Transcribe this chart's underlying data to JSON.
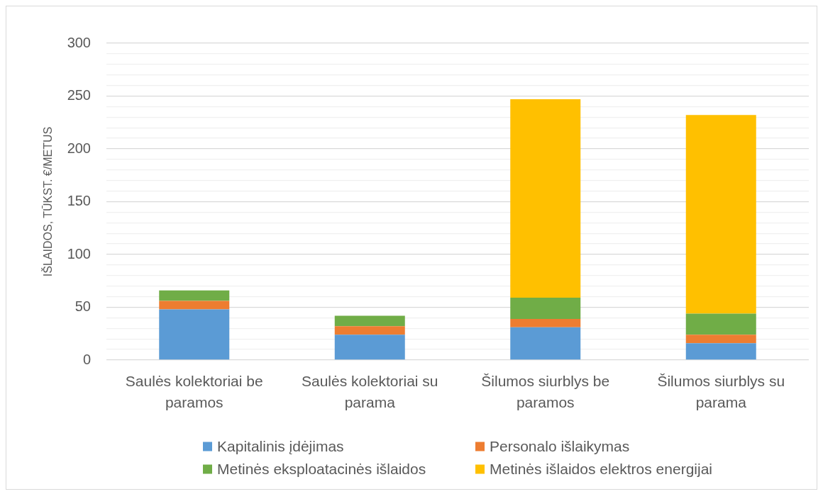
{
  "chart_data": {
    "type": "bar",
    "stacked": true,
    "ylabel": "IŠLAIDOS, TŪKST. €/METUS",
    "categories": [
      "Saulės kolektoriai be paramos",
      "Saulės kolektoriai su parama",
      "Šilumos siurblys be paramos",
      "Šilumos siurblys su parama"
    ],
    "series": [
      {
        "name": "Kapitalinis įdėjimas",
        "color": "#5b9bd5",
        "values": [
          48,
          24,
          31,
          16
        ]
      },
      {
        "name": "Personalo išlaikymas",
        "color": "#ed7d31",
        "values": [
          8,
          8,
          8,
          8
        ]
      },
      {
        "name": "Metinės eksploatacinės išlaidos",
        "color": "#70ad47",
        "values": [
          10,
          10,
          20,
          20
        ]
      },
      {
        "name": "Metinės išlaidos elektros energijai",
        "color": "#ffc000",
        "values": [
          null,
          null,
          188,
          188
        ]
      }
    ],
    "ylim": [
      0,
      300
    ],
    "yticks": [
      0,
      {
        "value": 10,
        "label": null
      },
      {
        "value": 20,
        "label": null
      },
      {
        "value": 30,
        "label": null
      },
      {
        "value": 40,
        "label": null
      },
      50,
      {
        "value": 60,
        "label": null
      },
      {
        "value": 70,
        "label": null
      },
      {
        "value": 80,
        "label": null
      },
      {
        "value": 90,
        "label": null
      },
      100,
      {
        "value": 110,
        "label": null
      },
      {
        "value": 120,
        "label": null
      },
      {
        "value": 130,
        "label": null
      },
      {
        "value": 140,
        "label": null
      },
      150,
      {
        "value": 160,
        "label": null
      },
      {
        "value": 170,
        "label": null
      },
      {
        "value": 180,
        "label": null
      },
      {
        "value": 190,
        "label": null
      },
      200,
      {
        "value": 210,
        "label": null
      },
      {
        "value": 220,
        "label": null
      },
      {
        "value": 230,
        "label": null
      },
      {
        "value": 240,
        "label": null
      },
      250,
      {
        "value": 260,
        "label": null
      },
      {
        "value": 270,
        "label": null
      },
      {
        "value": 280,
        "label": null
      },
      {
        "value": 290,
        "label": null
      },
      300
    ],
    "grid": "y",
    "legend": "bottom"
  }
}
